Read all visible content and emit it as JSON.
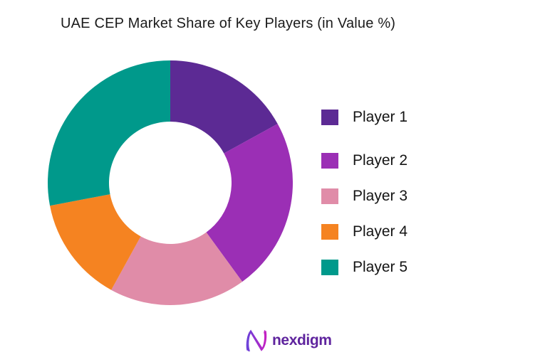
{
  "title": "UAE CEP Market Share of Key Players (in Value %)",
  "chart_data": {
    "type": "pie",
    "subtype": "donut",
    "title": "UAE CEP Market Share of Key Players (in Value %)",
    "categories": [
      "Player 1",
      "Player 2",
      "Player 3",
      "Player 4",
      "Player 5"
    ],
    "values": [
      17,
      23,
      18,
      14,
      28
    ],
    "unit": "percent of market value",
    "colors": [
      "#5C2A94",
      "#9B2FB5",
      "#E08CA8",
      "#F58321",
      "#00998B"
    ],
    "start_angle_deg": 0,
    "direction": "clockwise",
    "inner_radius_ratio": 0.5,
    "data_labels": false,
    "legend_position": "right"
  },
  "legend": {
    "items": [
      {
        "label": "Player 1",
        "color": "#5C2A94"
      },
      {
        "label": "Player 2",
        "color": "#9B2FB5"
      },
      {
        "label": "Player 3",
        "color": "#E08CA8"
      },
      {
        "label": "Player 4",
        "color": "#F58321"
      },
      {
        "label": "Player 5",
        "color": "#00998B"
      }
    ]
  },
  "footer": {
    "brand": "nexdigm",
    "brand_color": "#5F249E",
    "icon": "nexdigm-wave-n-icon",
    "icon_gradient": [
      "#6C3FD8",
      "#C322C3"
    ]
  }
}
